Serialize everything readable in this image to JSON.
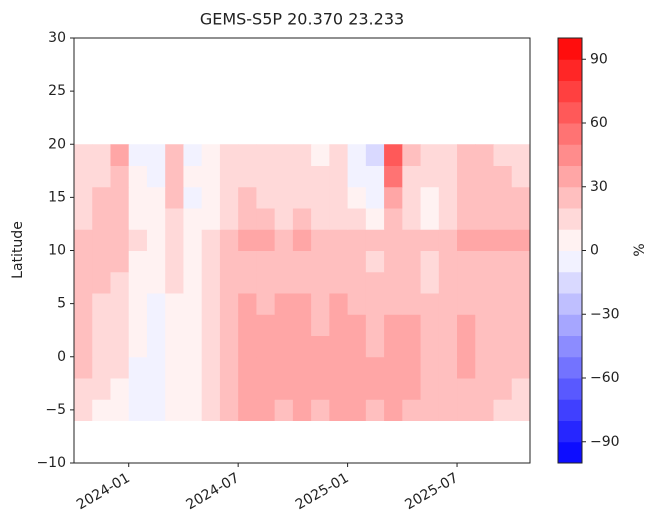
{
  "chart_data": {
    "type": "heatmap",
    "title": "GEMS-S5P 20.370 23.233",
    "ylabel": "Latitude",
    "x": [
      "2023-10",
      "2023-11",
      "2023-12",
      "2024-01",
      "2024-02",
      "2024-03",
      "2024-04",
      "2024-05",
      "2024-06",
      "2024-07",
      "2024-08",
      "2024-09",
      "2024-10",
      "2024-11",
      "2024-12",
      "2025-01",
      "2025-02",
      "2025-03",
      "2025-04",
      "2025-05",
      "2025-06",
      "2025-07",
      "2025-08",
      "2025-09",
      "2025-10"
    ],
    "xlim": [
      "2023-10",
      "2025-11"
    ],
    "xticks": [
      "2024-01",
      "2024-07",
      "2025-01",
      "2025-07"
    ],
    "y": [
      -6,
      -4,
      -2,
      0,
      2,
      4,
      6,
      8,
      10,
      12,
      14,
      16,
      18,
      20
    ],
    "values": [
      [
        10,
        5,
        0,
        -10,
        -10,
        0,
        5,
        10,
        20,
        30,
        30,
        25,
        30,
        25,
        30,
        30,
        25,
        30,
        25,
        20,
        20,
        20,
        20,
        15,
        10
      ],
      [
        15,
        10,
        5,
        -5,
        -10,
        0,
        5,
        10,
        25,
        35,
        30,
        30,
        30,
        30,
        30,
        35,
        30,
        30,
        30,
        20,
        25,
        25,
        20,
        20,
        15
      ],
      [
        20,
        10,
        10,
        -5,
        -5,
        5,
        5,
        15,
        25,
        35,
        35,
        35,
        30,
        30,
        35,
        35,
        30,
        35,
        30,
        25,
        25,
        30,
        25,
        25,
        20
      ],
      [
        20,
        15,
        15,
        0,
        -5,
        5,
        5,
        15,
        25,
        35,
        30,
        30,
        30,
        30,
        30,
        30,
        25,
        30,
        30,
        25,
        25,
        30,
        25,
        25,
        20
      ],
      [
        20,
        15,
        10,
        0,
        -5,
        5,
        5,
        10,
        20,
        30,
        30,
        30,
        30,
        25,
        30,
        30,
        25,
        30,
        30,
        20,
        25,
        30,
        25,
        25,
        20
      ],
      [
        20,
        15,
        15,
        5,
        -5,
        5,
        0,
        10,
        20,
        30,
        25,
        30,
        30,
        25,
        30,
        25,
        20,
        25,
        25,
        20,
        20,
        25,
        25,
        20,
        20
      ],
      [
        20,
        20,
        15,
        5,
        0,
        10,
        5,
        10,
        20,
        25,
        25,
        25,
        25,
        20,
        25,
        25,
        20,
        25,
        20,
        15,
        20,
        25,
        25,
        25,
        20
      ],
      [
        20,
        20,
        20,
        5,
        0,
        10,
        0,
        10,
        20,
        25,
        25,
        25,
        25,
        20,
        25,
        20,
        15,
        20,
        20,
        15,
        20,
        25,
        25,
        25,
        25
      ],
      [
        25,
        25,
        25,
        10,
        5,
        15,
        5,
        10,
        25,
        30,
        30,
        25,
        30,
        25,
        25,
        25,
        20,
        25,
        25,
        20,
        25,
        30,
        30,
        30,
        30
      ],
      [
        15,
        20,
        20,
        5,
        0,
        15,
        0,
        5,
        15,
        20,
        20,
        15,
        20,
        15,
        15,
        10,
        5,
        20,
        10,
        5,
        15,
        20,
        20,
        20,
        20
      ],
      [
        15,
        20,
        20,
        0,
        0,
        25,
        -5,
        5,
        10,
        20,
        15,
        15,
        15,
        10,
        10,
        0,
        -5,
        30,
        10,
        5,
        10,
        20,
        20,
        20,
        20
      ],
      [
        15,
        15,
        25,
        0,
        -5,
        20,
        0,
        5,
        10,
        15,
        15,
        10,
        10,
        10,
        10,
        -5,
        -10,
        50,
        15,
        10,
        15,
        20,
        20,
        20,
        15
      ],
      [
        10,
        15,
        30,
        -5,
        -10,
        20,
        -5,
        0,
        10,
        15,
        10,
        15,
        10,
        5,
        10,
        -10,
        -15,
        60,
        20,
        10,
        15,
        20,
        20,
        15,
        15
      ]
    ],
    "ylim": [
      -10,
      30
    ],
    "yticks": [
      {
        "value": -10,
        "label": "−10"
      },
      {
        "value": -5,
        "label": "−5"
      },
      0,
      5,
      10,
      15,
      20,
      25,
      30
    ],
    "colorbar": {
      "label": "%",
      "lim": [
        -100,
        100
      ],
      "levels": 20,
      "ticks": [
        {
          "value": -90,
          "label": "−90"
        },
        {
          "value": -60,
          "label": "−60"
        },
        {
          "value": -30,
          "label": "−30"
        },
        0,
        30,
        60,
        90
      ]
    }
  }
}
